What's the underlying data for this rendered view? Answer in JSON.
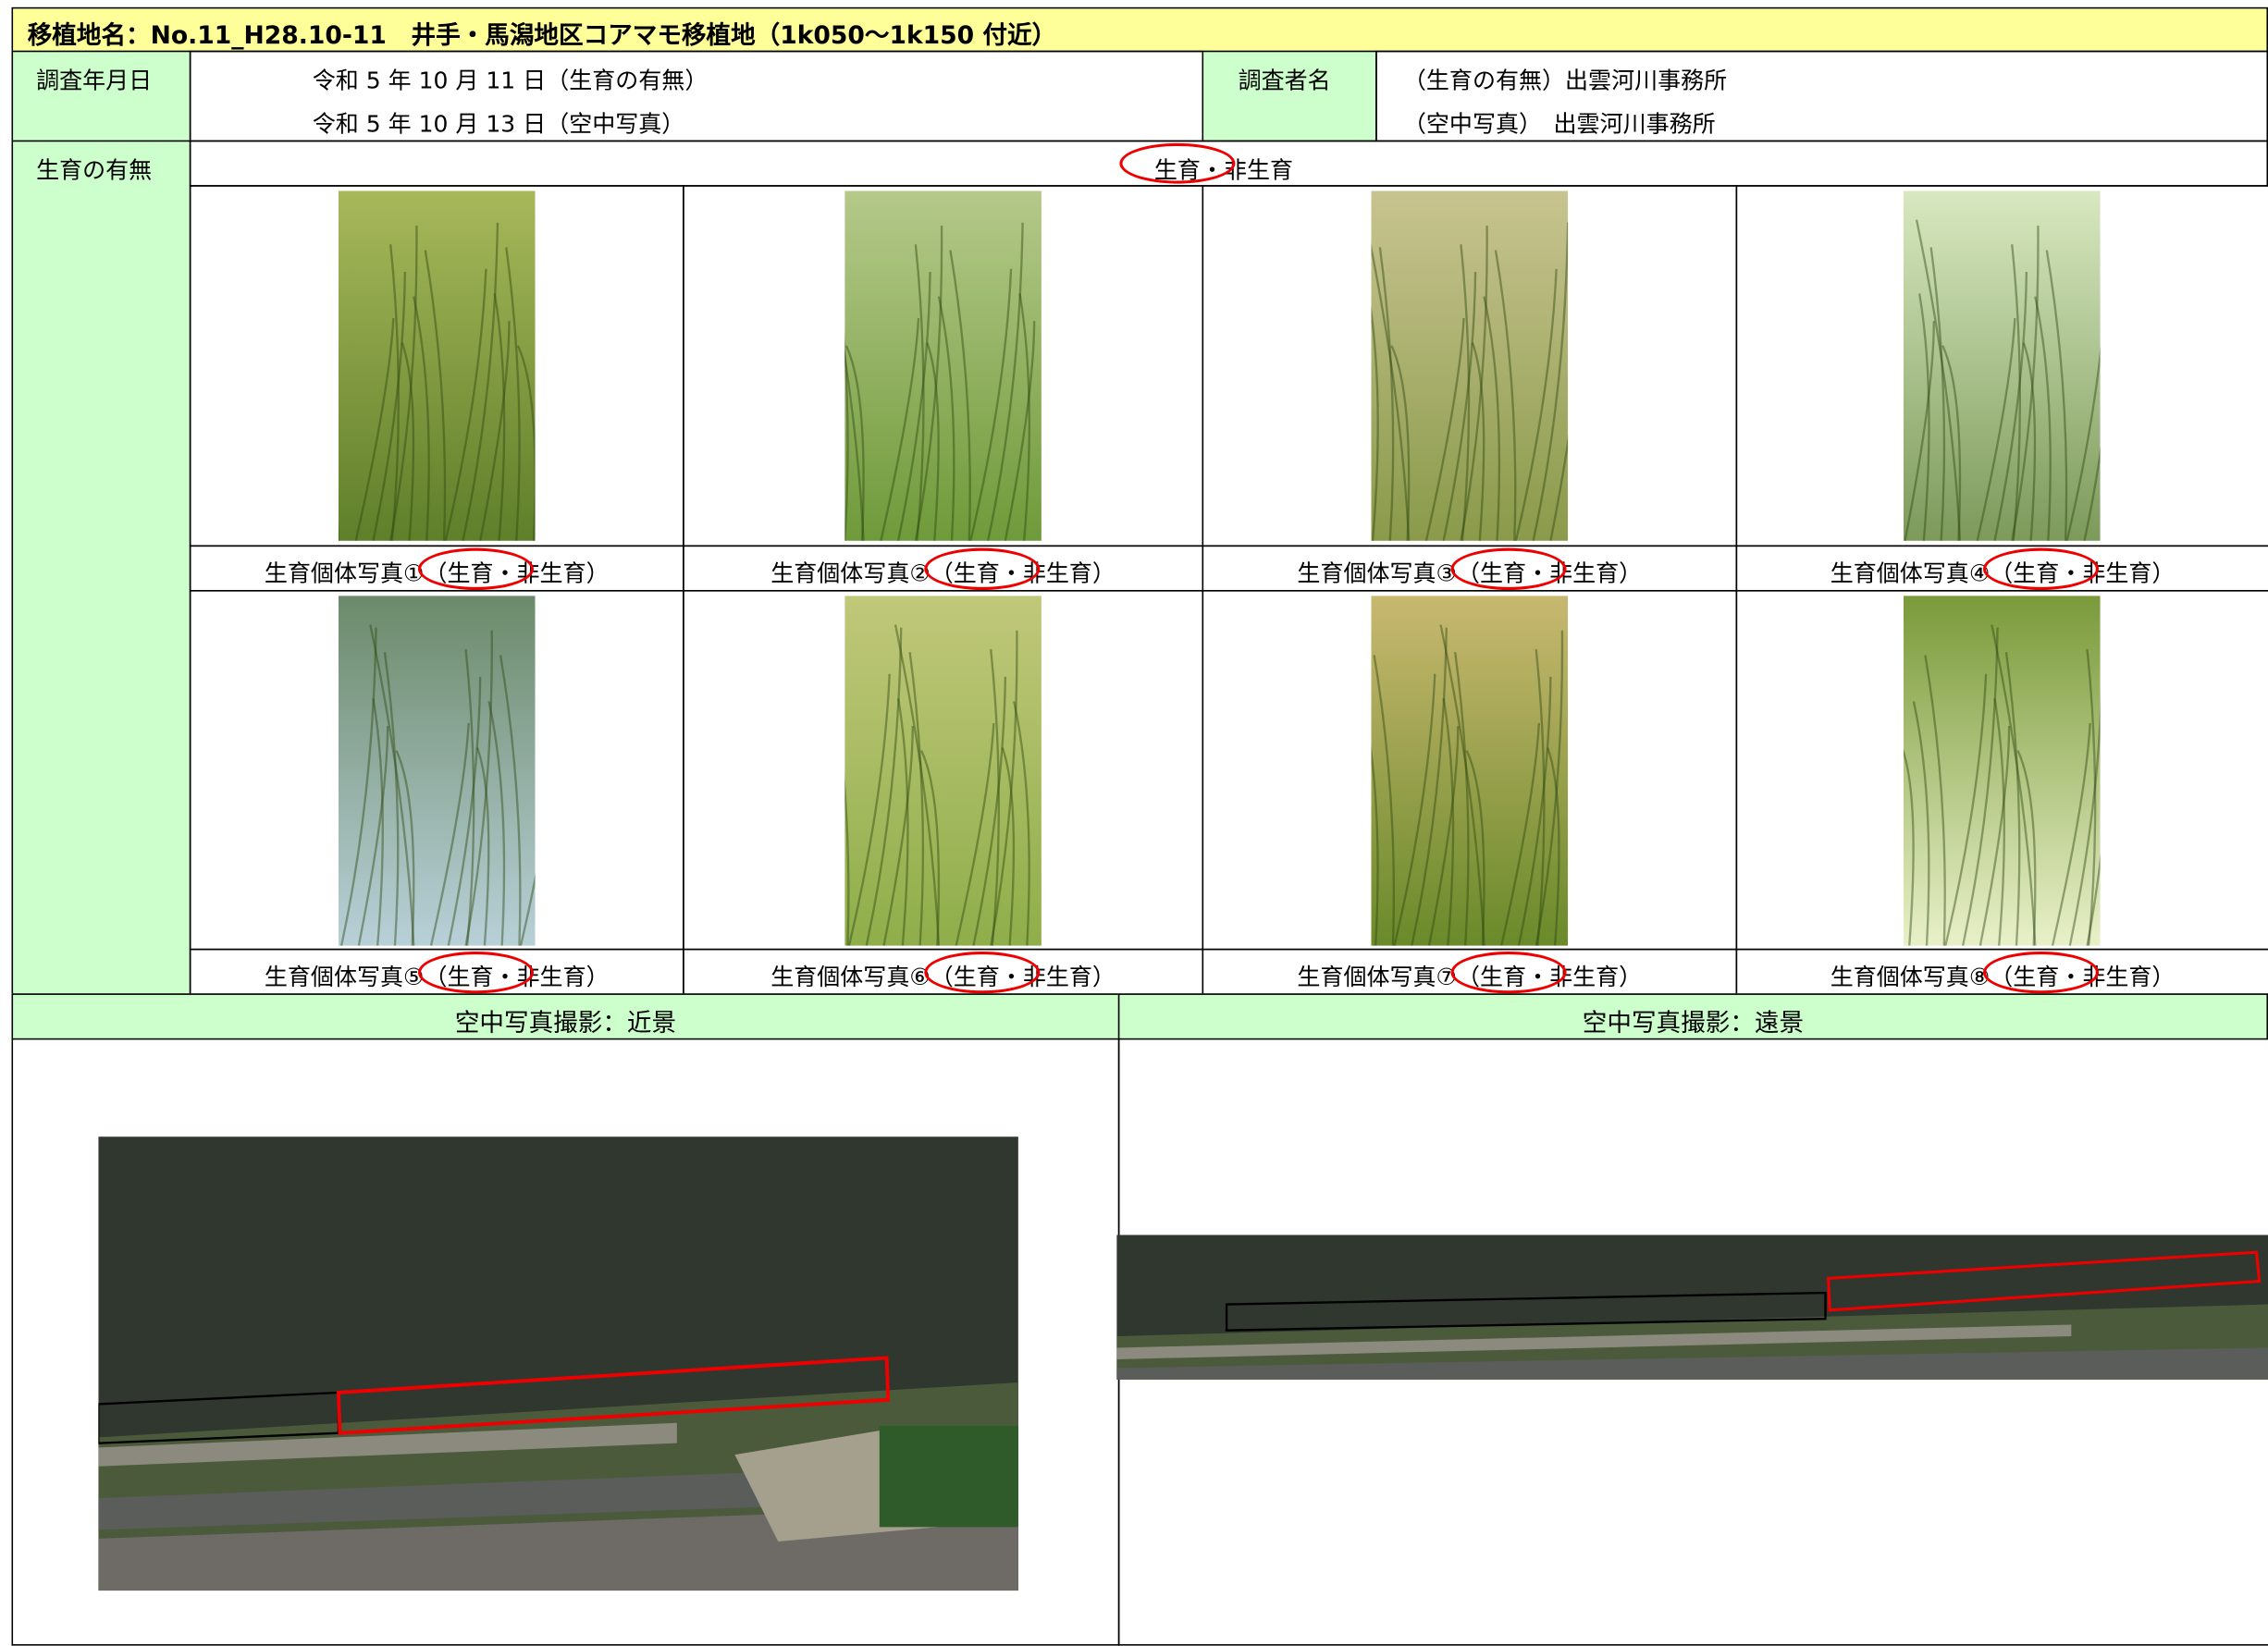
{
  "header": {
    "title": "移植地名：No.11_H28.10-11　井手・馬潟地区コアマモ移植地（1k050〜1k150 付近）"
  },
  "survey": {
    "date_label": "調査年月日",
    "dates": [
      "令和 5 年 10 月 11 日（生育の有無）",
      "令和 5 年 10 月 13 日（空中写真）"
    ],
    "surveyor_label": "調査者名",
    "surveyors": [
      "（生育の有無）出雲河川事務所",
      "（空中写真）　出雲河川事務所"
    ]
  },
  "presence": {
    "label": "生育の有無",
    "value": "生育・非生育"
  },
  "photos": [
    "生育個体写真①（生育・非生育）",
    "生育個体写真②（生育・非生育）",
    "生育個体写真③（生育・非生育）",
    "生育個体写真④（生育・非生育）",
    "生育個体写真⑤（生育・非生育）",
    "生育個体写真⑥（生育・非生育）",
    "生育個体写真⑦（生育・非生育）",
    "生育個体写真⑧（生育・非生育）"
  ],
  "aerial": {
    "near_label": "空中写真撮影：近景",
    "far_label": "空中写真撮影：遠景"
  }
}
